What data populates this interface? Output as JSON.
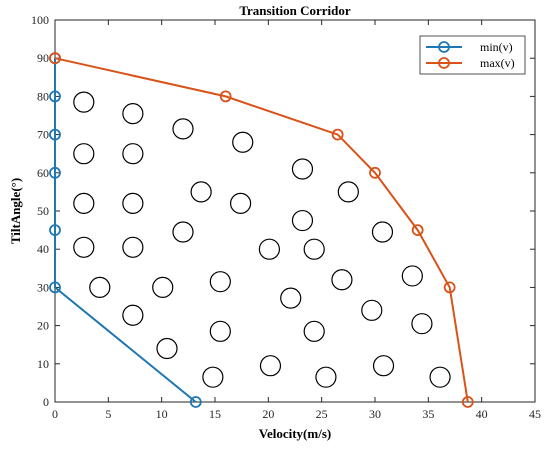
{
  "chart_data": {
    "type": "line",
    "title": "Transition Corridor",
    "xlabel": "Velocity(m/s)",
    "ylabel": "TiltAngle(°)",
    "xlim": [
      0,
      45
    ],
    "ylim": [
      0,
      100
    ],
    "xticks": [
      0,
      5,
      10,
      15,
      20,
      25,
      30,
      35,
      40,
      45
    ],
    "yticks": [
      0,
      10,
      20,
      30,
      40,
      50,
      60,
      70,
      80,
      90,
      100
    ],
    "xtick_labels": [
      "0",
      "5",
      "10",
      "15",
      "20",
      "25",
      "30",
      "35",
      "40",
      "45"
    ],
    "ytick_labels": [
      "0",
      "10",
      "20",
      "30",
      "40",
      "50",
      "60",
      "70",
      "80",
      "90",
      "100"
    ],
    "grid": false,
    "legend_position": "top-right",
    "series": [
      {
        "name": "min(v)",
        "color": "#1f77b4",
        "points": [
          [
            0,
            90
          ],
          [
            0,
            80
          ],
          [
            0,
            70
          ],
          [
            0,
            60
          ],
          [
            0,
            45
          ],
          [
            0,
            30
          ],
          [
            13.2,
            0
          ]
        ]
      },
      {
        "name": "max(v)",
        "color": "#d95319",
        "points": [
          [
            0,
            90
          ],
          [
            16,
            80
          ],
          [
            26.5,
            70
          ],
          [
            30,
            60
          ],
          [
            34,
            45
          ],
          [
            37,
            30
          ],
          [
            38.7,
            0
          ]
        ]
      }
    ],
    "scatter_points": [
      [
        2.7,
        78.5
      ],
      [
        7.3,
        75.5
      ],
      [
        12,
        71.5
      ],
      [
        17.6,
        68
      ],
      [
        2.7,
        65
      ],
      [
        7.3,
        65
      ],
      [
        23.2,
        61
      ],
      [
        13.7,
        55
      ],
      [
        27.5,
        55
      ],
      [
        2.7,
        52
      ],
      [
        7.3,
        52
      ],
      [
        17.4,
        52
      ],
      [
        23.2,
        47.5
      ],
      [
        12,
        44.5
      ],
      [
        30.7,
        44.5
      ],
      [
        2.7,
        40.5
      ],
      [
        7.3,
        40.5
      ],
      [
        20.1,
        40
      ],
      [
        24.3,
        40
      ],
      [
        33.5,
        33
      ],
      [
        15.5,
        31.5
      ],
      [
        26.9,
        32
      ],
      [
        4.2,
        30
      ],
      [
        10.1,
        30
      ],
      [
        22.1,
        27.2
      ],
      [
        29.7,
        24
      ],
      [
        7.3,
        22.7
      ],
      [
        34.4,
        20.5
      ],
      [
        15.5,
        18.5
      ],
      [
        24.3,
        18.5
      ],
      [
        10.5,
        14
      ],
      [
        20.2,
        9.5
      ],
      [
        30.8,
        9.5
      ],
      [
        14.8,
        6.5
      ],
      [
        25.4,
        6.5
      ],
      [
        36.1,
        6.5
      ]
    ]
  }
}
